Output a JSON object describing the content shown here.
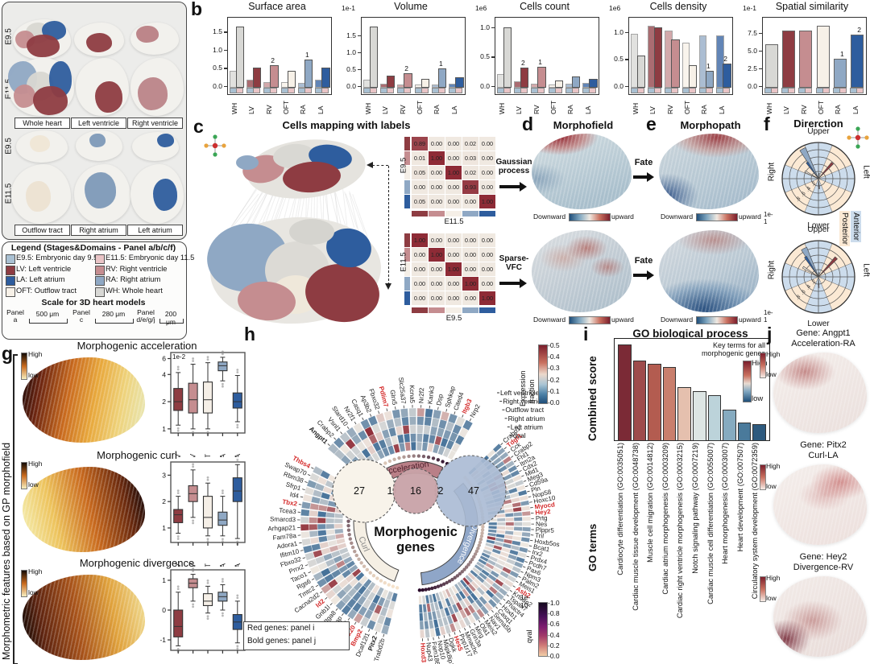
{
  "colors": {
    "wh": "#d8d8d5",
    "lv": "#8e3c42",
    "rv": "#c58d90",
    "oft": "#f7f1e8",
    "ra": "#8fa8c4",
    "la": "#2e5d9e",
    "e95": "#a9c0d2",
    "e115": "#e9c4c6",
    "heat_red": "#8e2b36",
    "heat_blue": "#2b5f8e",
    "gene_red": "#d42a2a"
  },
  "panels": {
    "a": {
      "label": "a",
      "title": "3D reconstructed heart models",
      "row_labels": [
        "E9.5",
        "E11.5",
        "E9.5",
        "E11.5"
      ],
      "captions": [
        "Whole heart",
        "Left ventricle",
        "Right ventricle",
        "Outflow tract",
        "Right atrium",
        "Left atrium"
      ]
    },
    "b": {
      "label": "b"
    },
    "c": {
      "label": "c",
      "title": "Cells mapping with labels",
      "gp_label": "Gaussian process",
      "vfc_label": "Sparse-VFC",
      "m1": {
        "rows": "E9.5",
        "cols": "E11.5"
      },
      "m2": {
        "rows": "E11.5",
        "cols": "E9.5"
      }
    },
    "d": {
      "label": "d",
      "title": "Morphofield"
    },
    "e": {
      "label": "e",
      "title": "Morphopath",
      "fate": "Fate"
    },
    "f": {
      "label": "f",
      "title": "Direrction",
      "dirs": [
        "Upper",
        "Left",
        "Lower",
        "Right"
      ],
      "scale": "1e-1",
      "radial_ticks": [
        ".8",
        ".6",
        ".4",
        ".2"
      ],
      "anterior": "Anterior",
      "posterior": "Posterior"
    },
    "g": {
      "label": "g",
      "axis_label": "Morphometric features based on GP morphofield",
      "cb_high": "High",
      "cb_low": "low",
      "rows": [
        {
          "title": "Morphogenic acceleration"
        },
        {
          "title": "Morphogenic curl"
        },
        {
          "title": "Morphogenic divergence"
        }
      ]
    },
    "h": {
      "label": "h",
      "center1": "Morphogenic",
      "center2": "genes",
      "venn": {
        "curl": "27",
        "curl_acc": "1",
        "acc": "16",
        "acc_div": "2",
        "div": "47"
      },
      "ring_labels": [
        "Left ventricle",
        "Right ventricle",
        "Outflow tract",
        "Right atrium",
        "Left atrium",
        "qval"
      ],
      "groups": {
        "acceleration": {
          "label": "Acceleration",
          "genes": [
            "Angpt1|b",
            "Crabp2",
            "Vsnl1",
            "Stard10",
            "Nr2f1",
            "Casq1",
            "Ap3b2",
            "Fbxo32",
            "Pdlim7|r",
            "Glrx5",
            "Slc25a37",
            "Kcna5",
            "Nr2f2",
            "Kank3",
            "Dsp",
            "Sphkap",
            "Cited4",
            "Itgb3|r",
            "Nrp2"
          ]
        },
        "curl": {
          "label": "Curl",
          "genes": [
            "Thbs4|r",
            "Swap70",
            "Rbm38",
            "Sfrp1",
            "Id4",
            "Tbx2|r",
            "Tcea3",
            "Smarcd3",
            "Arhgap21",
            "Fam78a",
            "Adora1",
            "Ifitm10",
            "Fbxo32",
            "Prrx2",
            "Taco1",
            "Rgs6",
            "Tmtc2",
            "Cacna2d2",
            "Id2|r",
            "Gnb1l",
            "Itga8",
            "Nos1ap",
            "Wnt2",
            "Tbx20|r",
            "Bmp2|r",
            "Dcaf12l1",
            "Pitx2|b",
            "Trabd2b"
          ]
        },
        "divergence": {
          "label": "Divergence",
          "genes": [
            "Crabp1",
            "Tdgf1|r",
            "Cck",
            "Crabp2",
            "Fhl1",
            "Itm2a",
            "Cdx2",
            "Mid1",
            "Meg3",
            "Cd59a",
            "Pln",
            "Nop58",
            "Hoxc10",
            "Myocd|r",
            "Hey2|rb",
            "Prtg",
            "Nes",
            "Plppr5",
            "Tril",
            "Hoxb5os",
            "Bcat1",
            "Irx2",
            "Prdx4",
            "Pcdh7",
            "Pax6",
            "Npm3",
            "Palm2",
            "Meis1",
            "Asb2|r",
            "Krtcap2",
            "Tspan7",
            "Phactr4",
            "Hoxb1",
            "Casq1",
            "Sema5b",
            "Nav1",
            "Meis2",
            "Ola1",
            "Mirg",
            "Grin3a",
            "Mmachc",
            "Ppp1r17",
            "Hes5|r",
            "Dgkk",
            "Mapk8ip1",
            "Nop10",
            "Fam186a",
            "Nup43",
            "Hoxd3|r"
          ]
        }
      },
      "expr_cb": {
        "label1": "Expression",
        "label2": "fraction",
        "ticks": [
          "0.5",
          "0.4",
          "0.3",
          "0.2",
          "0.1",
          "0.0"
        ]
      },
      "qval_cb": {
        "unit": "1e-10",
        "label": "qval",
        "ticks": [
          "1.0",
          "0.8",
          "0.6",
          "0.4",
          "0.2",
          "0.0"
        ]
      },
      "note1": "Red genes: panel i",
      "note2": "Bold genes: panel j"
    },
    "i": {
      "label": "i",
      "title": "GO biological process",
      "ylabel": "Combined score",
      "xlabel": "GO terms",
      "key1": "Key terms for all",
      "key2": "morphogenic genes",
      "cb_high": "High",
      "cb_low": "low"
    },
    "j": {
      "label": "j",
      "cb_high": "High",
      "cb_low": "low",
      "items": [
        {
          "line1": "Gene: Angpt1",
          "line2": "Acceleration-RA"
        },
        {
          "line1": "Gene: Pitx2",
          "line2": "Curl-LA"
        },
        {
          "line1": "Gene: Hey2",
          "line2": "Divergence-RV"
        }
      ]
    }
  },
  "legend": {
    "title": "Legend (Stages&Domains - Panel a/b/c/f)",
    "items": [
      {
        "code": "E9.5",
        "desc": "Embryonic day 9.5",
        "color": "#a9c0d2"
      },
      {
        "code": "E11.5",
        "desc": "Embryonic day 11.5",
        "color": "#e9c4c6"
      },
      {
        "code": "LV",
        "desc": "Left ventricle",
        "color": "#8e3c42"
      },
      {
        "code": "RV",
        "desc": "Right ventricle",
        "color": "#c58d90"
      },
      {
        "code": "LA",
        "desc": "Left atrium",
        "color": "#2e5d9e"
      },
      {
        "code": "RA",
        "desc": "Right atrium",
        "color": "#8fa8c4"
      },
      {
        "code": "OFT",
        "desc": "Outflow tract",
        "color": "#f7f1e8"
      },
      {
        "code": "WH",
        "desc": "Whole heart",
        "color": "#d8d8d5"
      }
    ],
    "scale_title": "Scale for 3D heart models",
    "scales": [
      {
        "panel": "Panel a",
        "length": "500 μm"
      },
      {
        "panel": "Panel c",
        "length": "280 μm"
      },
      {
        "panel": "Panel d/e/g/j",
        "length": "200 μm"
      }
    ]
  },
  "flow_cb": {
    "left": "Downward",
    "right": "upward"
  },
  "chart_data": [
    {
      "id": "surface_area",
      "type": "bar",
      "title": "Surface area",
      "scale": "",
      "categories": [
        "WH",
        "LV",
        "RV",
        "OFT",
        "RA",
        "LA"
      ],
      "series": [
        {
          "name": "E9.5",
          "values": [
            0.42,
            0.18,
            0.12,
            0.1,
            0.08,
            0.18
          ]
        },
        {
          "name": "E11.5",
          "values": [
            1.65,
            0.51,
            0.58,
            0.42,
            0.74,
            0.51
          ]
        }
      ],
      "yticks": [
        0.0,
        0.5,
        1.0,
        1.5
      ],
      "ylim": [
        0,
        1.82
      ],
      "annotations": {
        "RV": "2",
        "RA": "1"
      }
    },
    {
      "id": "volume",
      "type": "bar",
      "title": "Volume",
      "scale": "1e-1",
      "categories": [
        "WH",
        "LV",
        "RV",
        "OFT",
        "RA",
        "LA"
      ],
      "series": [
        {
          "name": "E9.5",
          "values": [
            0.2,
            0.06,
            0.05,
            0.04,
            0.04,
            0.06
          ]
        },
        {
          "name": "E11.5",
          "values": [
            1.77,
            0.3,
            0.38,
            0.22,
            0.52,
            0.27
          ]
        }
      ],
      "yticks": [
        0.0,
        0.5,
        1.0,
        1.5
      ],
      "ylim": [
        0,
        1.95
      ],
      "annotations": {
        "RV": "2",
        "RA": "1"
      }
    },
    {
      "id": "cells_count",
      "type": "bar",
      "title": "Cells count",
      "scale": "1e6",
      "categories": [
        "WH",
        "LV",
        "RV",
        "OFT",
        "RA",
        "LA"
      ],
      "series": [
        {
          "name": "E9.5",
          "values": [
            0.21,
            0.08,
            0.04,
            0.03,
            0.04,
            0.05
          ]
        },
        {
          "name": "E11.5",
          "values": [
            1.0,
            0.32,
            0.33,
            0.09,
            0.16,
            0.12
          ]
        }
      ],
      "yticks": [
        0.0,
        0.5,
        1.0
      ],
      "ylim": [
        0,
        1.12
      ],
      "annotations": {
        "LV": "2",
        "RV": "1"
      }
    },
    {
      "id": "cells_density",
      "type": "bar",
      "title": "Cells density",
      "scale": "1e6",
      "categories": [
        "WH",
        "LV",
        "RV",
        "OFT",
        "RA",
        "LA"
      ],
      "series": [
        {
          "name": "E9.5",
          "values": [
            0.97,
            1.12,
            1.02,
            0.8,
            0.94,
            0.93
          ]
        },
        {
          "name": "E11.5",
          "values": [
            0.56,
            1.08,
            0.87,
            0.38,
            0.28,
            0.42
          ]
        }
      ],
      "yticks": [
        0.0,
        0.5,
        1.0
      ],
      "ylim": [
        0,
        1.22
      ],
      "annotations": {
        "RA": "1",
        "LA": "2"
      }
    },
    {
      "id": "spatial_similarity",
      "type": "bar",
      "title": "Spatial similarity",
      "scale": "1e-1",
      "categories": [
        "WH",
        "LV",
        "RV",
        "OFT",
        "RA",
        "LA"
      ],
      "values": [
        5.9,
        7.8,
        7.8,
        8.5,
        3.8,
        7.3
      ],
      "single": true,
      "yticks": [
        0.0,
        2.5,
        5.0,
        7.5
      ],
      "ylim": [
        0,
        9.3
      ],
      "annotations": {
        "RA": "1",
        "LA": "2"
      }
    },
    {
      "id": "mapping_gp",
      "type": "heatmap",
      "row_axis": "E9.5",
      "col_axis": "E11.5",
      "values": [
        [
          0.89,
          0.0,
          0.0,
          0.02,
          0.0
        ],
        [
          0.01,
          1.0,
          0.0,
          0.03,
          0.0
        ],
        [
          0.05,
          0.0,
          1.0,
          0.02,
          0.0
        ],
        [
          0.0,
          0.0,
          0.0,
          0.93,
          0.0
        ],
        [
          0.05,
          0.0,
          0.0,
          0.0,
          1.0
        ]
      ]
    },
    {
      "id": "mapping_vfc",
      "type": "heatmap",
      "row_axis": "E11.5",
      "col_axis": "E9.5",
      "values": [
        [
          1.0,
          0.0,
          0.0,
          0.0,
          0.0
        ],
        [
          0.0,
          1.0,
          0.0,
          0.0,
          0.0
        ],
        [
          0.0,
          0.0,
          1.0,
          0.0,
          0.0
        ],
        [
          0.0,
          0.0,
          0.0,
          1.0,
          0.0
        ],
        [
          0.0,
          0.0,
          0.0,
          0.0,
          1.0
        ]
      ]
    },
    {
      "id": "direction_gp",
      "type": "polar-bar",
      "unit": "1e-1",
      "bars": [
        {
          "angle": -28,
          "len": 0.93,
          "color": "ra",
          "w": 11
        },
        {
          "angle": -35,
          "len": 0.55,
          "color": "la",
          "w": 6
        },
        {
          "angle": -62,
          "len": 0.42,
          "color": "oft",
          "w": 6
        },
        {
          "angle": 42,
          "len": 0.58,
          "color": "lv",
          "w": 7
        },
        {
          "angle": 8,
          "len": 0.15,
          "color": "rv",
          "w": 4
        },
        {
          "angle": 175,
          "len": 0.28,
          "color": "rv",
          "w": 4
        }
      ]
    },
    {
      "id": "direction_vfc",
      "type": "polar-bar",
      "unit": "1e-1",
      "bars": [
        {
          "angle": -27,
          "len": 0.88,
          "color": "ra",
          "w": 11
        },
        {
          "angle": -33,
          "len": 0.66,
          "color": "la",
          "w": 6
        },
        {
          "angle": -58,
          "len": 0.5,
          "color": "oft",
          "w": 6
        },
        {
          "angle": 43,
          "len": 0.72,
          "color": "lv",
          "w": 7
        },
        {
          "angle": 10,
          "len": 0.12,
          "color": "rv",
          "w": 4
        },
        {
          "angle": 178,
          "len": 0.3,
          "color": "rv",
          "w": 4
        }
      ]
    },
    {
      "id": "acceleration_box",
      "type": "box",
      "unit": "1e-2",
      "yscale": "log",
      "ymin": 0.9,
      "ymax": 7,
      "yticks": [
        1,
        2,
        4,
        6
      ],
      "categories": [
        "LV",
        "RV",
        "OFT",
        "RA",
        "LA"
      ],
      "boxes": [
        [
          1.1,
          1.6,
          2.0,
          2.8,
          4.2
        ],
        [
          1.0,
          1.5,
          2.1,
          3.2,
          5.2
        ],
        [
          1.0,
          1.5,
          2.1,
          3.3,
          5.4
        ],
        [
          3.4,
          4.4,
          5.0,
          5.5,
          6.2
        ],
        [
          1.2,
          1.7,
          2.0,
          2.5,
          3.9
        ]
      ]
    },
    {
      "id": "curl_box",
      "type": "box",
      "unit": "",
      "yscale": "lin",
      "ymin": 0.45,
      "ymax": 3.5,
      "yticks": [
        1,
        2,
        3
      ],
      "categories": [
        "LV",
        "RV",
        "OFT",
        "RA",
        "LA"
      ],
      "boxes": [
        [
          0.8,
          1.2,
          1.5,
          1.7,
          2.2
        ],
        [
          1.4,
          2.0,
          2.3,
          2.6,
          3.2
        ],
        [
          0.7,
          1.0,
          1.4,
          2.2,
          2.7
        ],
        [
          0.7,
          1.1,
          1.3,
          1.6,
          2.2
        ],
        [
          0.6,
          2.0,
          2.4,
          2.9,
          3.4
        ]
      ]
    },
    {
      "id": "divergence_box",
      "type": "box",
      "unit": "",
      "yscale": "lin",
      "ymin": -1.35,
      "ymax": 1.35,
      "yticks": [
        -1,
        0,
        1
      ],
      "categories": [
        "LV",
        "RV",
        "OFT",
        "RA",
        "LA"
      ],
      "boxes": [
        [
          -1.2,
          -0.9,
          -0.55,
          0.0,
          0.6
        ],
        [
          0.3,
          0.75,
          0.9,
          1.05,
          1.2
        ],
        [
          -0.1,
          0.15,
          0.3,
          0.55,
          0.8
        ],
        [
          0.0,
          0.3,
          0.45,
          0.6,
          0.85
        ],
        [
          -1.1,
          -0.65,
          -0.4,
          -0.15,
          0.3
        ]
      ]
    },
    {
      "id": "go",
      "type": "bar",
      "title": "GO biological process",
      "ylabel": "Combined score",
      "xlabel": "GO terms",
      "labels": [
        "Cardiocyte differentiation (GO:0035051)",
        "Cardiac muscle tissue development (GO:0048738)",
        "Muscle cell migration (GO:0014812)",
        "Cardiac atrium morphogenesis (GO:0003209)",
        "Cardiac right ventricle morphogenesis (GO:0003215)",
        "Notch signaling pathway (GO:0007219)",
        "Cardiac muscle cell differentiation (GO:0055007)",
        "Heart morphogenesis (GO:0003007)",
        "Heart development (GO:007507)",
        "Circulatory system development (GO:0072359)"
      ],
      "values": [
        1.0,
        0.82,
        0.79,
        0.75,
        0.53,
        0.48,
        0.44,
        0.28,
        0.135,
        0.12
      ],
      "bar_colors": [
        "#7b2a36",
        "#9e4c4c",
        "#b35c50",
        "#c97f6d",
        "#e5c0ae",
        "#dde5e4",
        "#bcd3da",
        "#86abc0",
        "#4a7a9b",
        "#2e5a7e"
      ]
    }
  ]
}
